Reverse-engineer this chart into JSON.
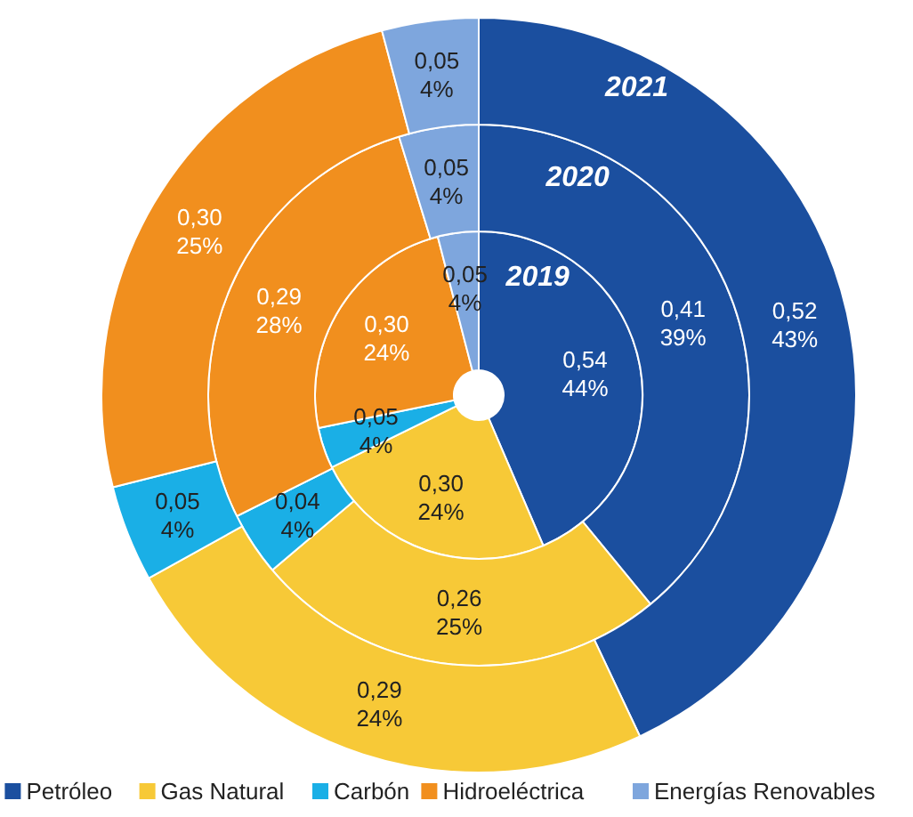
{
  "chart_data": {
    "type": "donut",
    "categories": [
      "Petróleo",
      "Gas Natural",
      "Carbón",
      "Hidroeléctrica",
      "Energías Renovables"
    ],
    "colors": [
      "#1b4f9f",
      "#f7c937",
      "#1aafe6",
      "#f18f1e",
      "#7ea6dd"
    ],
    "series": [
      {
        "name": "2019",
        "values": [
          0.54,
          0.3,
          0.05,
          0.3,
          0.05
        ],
        "value_labels": [
          "0,54\n44%",
          "0,30\n24%",
          "0,05\n4%",
          "0,30\n24%",
          "0,05\n4%"
        ]
      },
      {
        "name": "2020",
        "values": [
          0.41,
          0.26,
          0.04,
          0.29,
          0.05
        ],
        "value_labels": [
          "0,41\n39%",
          "0,26\n25%",
          "0,04\n4%",
          "0,29\n28%",
          "0,05\n4%"
        ]
      },
      {
        "name": "2021",
        "values": [
          0.52,
          0.29,
          0.05,
          0.3,
          0.05
        ],
        "value_labels": [
          "0,52\n43%",
          "0,29\n24%",
          "0,05\n4%",
          "0,30\n25%",
          "0,05\n4%"
        ]
      }
    ],
    "legend": "bottom"
  }
}
